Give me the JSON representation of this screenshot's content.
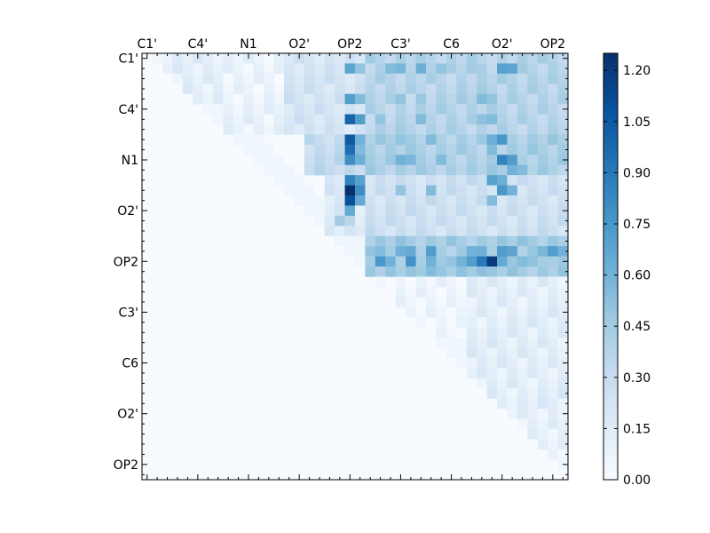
{
  "chart_data": {
    "type": "heatmap",
    "title": "",
    "xlabel": "",
    "ylabel": "",
    "matrix_size": 42,
    "x_tick_labels": [
      "C1'",
      "C4'",
      "N1",
      "O2'",
      "OP2",
      "C3'",
      "C6",
      "O2'",
      "OP2"
    ],
    "y_tick_labels": [
      "C1'",
      "C4'",
      "N1",
      "O2'",
      "OP2",
      "C3'",
      "C6",
      "O2'",
      "OP2"
    ],
    "label_positions": [
      0.5,
      5.5,
      10.5,
      15.5,
      20.5,
      25.5,
      30.5,
      35.5,
      40.5
    ],
    "colorbar": {
      "colormap": "Blues",
      "range": [
        0.0,
        1.25
      ],
      "tick_values": [
        0.0,
        0.15,
        0.3,
        0.45,
        0.6,
        0.75,
        0.9,
        1.05,
        1.2
      ],
      "tick_labels": [
        "0.00",
        "0.15",
        "0.30",
        "0.45",
        "0.60",
        "0.75",
        "0.90",
        "1.05",
        "1.20"
      ]
    },
    "colormap_stops": [
      "#f7fbff",
      "#deebf7",
      "#c6dbef",
      "#9ecae1",
      "#6baed6",
      "#4292c6",
      "#2171b5",
      "#08519c",
      "#08306b"
    ],
    "frame_color": "#000000",
    "blocks": [
      {
        "rows": [
          0,
          4
        ],
        "cols": [
          2,
          7
        ],
        "value": 0.12
      },
      {
        "rows": [
          0,
          7
        ],
        "cols": [
          8,
          13
        ],
        "value": 0.08
      },
      {
        "rows": [
          0,
          7
        ],
        "cols": [
          14,
          21
        ],
        "value": 0.22
      },
      {
        "rows": [
          0,
          7
        ],
        "cols": [
          22,
          41
        ],
        "value": 0.38
      },
      {
        "rows": [
          8,
          11
        ],
        "cols": [
          16,
          21
        ],
        "value": 0.32
      },
      {
        "rows": [
          8,
          11
        ],
        "cols": [
          22,
          41
        ],
        "value": 0.42
      },
      {
        "rows": [
          12,
          17
        ],
        "cols": [
          18,
          21
        ],
        "value": 0.18
      },
      {
        "rows": [
          12,
          17
        ],
        "cols": [
          22,
          41
        ],
        "value": 0.26
      },
      {
        "rows": [
          18,
          21
        ],
        "cols": [
          22,
          41
        ],
        "value": 0.45
      },
      {
        "rows": [
          22,
          27
        ],
        "cols": [
          24,
          31
        ],
        "value": 0.05
      },
      {
        "rows": [
          22,
          34
        ],
        "cols": [
          32,
          41
        ],
        "value": 0.13
      },
      {
        "rows": [
          35,
          39
        ],
        "cols": [
          36,
          41
        ],
        "value": 0.1
      }
    ],
    "cells": [
      [
        1,
        20,
        0.68
      ],
      [
        1,
        21,
        0.5
      ],
      [
        1,
        24,
        0.55
      ],
      [
        1,
        25,
        0.58
      ],
      [
        1,
        27,
        0.62
      ],
      [
        1,
        29,
        0.5
      ],
      [
        1,
        35,
        0.7
      ],
      [
        1,
        36,
        0.68
      ],
      [
        1,
        32,
        0.45
      ],
      [
        1,
        33,
        0.42
      ],
      [
        4,
        20,
        0.72
      ],
      [
        4,
        21,
        0.55
      ],
      [
        4,
        25,
        0.5
      ],
      [
        4,
        27,
        0.48
      ],
      [
        4,
        33,
        0.55
      ],
      [
        4,
        34,
        0.5
      ],
      [
        6,
        20,
        1.0
      ],
      [
        6,
        21,
        0.72
      ],
      [
        6,
        23,
        0.5
      ],
      [
        6,
        27,
        0.55
      ],
      [
        6,
        33,
        0.52
      ],
      [
        6,
        34,
        0.55
      ],
      [
        8,
        20,
        1.05
      ],
      [
        8,
        21,
        0.6
      ],
      [
        8,
        25,
        0.5
      ],
      [
        8,
        28,
        0.55
      ],
      [
        8,
        34,
        0.62
      ],
      [
        8,
        35,
        0.75
      ],
      [
        9,
        20,
        0.95
      ],
      [
        9,
        21,
        0.55
      ],
      [
        9,
        34,
        0.55
      ],
      [
        10,
        20,
        0.8
      ],
      [
        10,
        21,
        0.62
      ],
      [
        10,
        25,
        0.6
      ],
      [
        10,
        26,
        0.58
      ],
      [
        10,
        29,
        0.55
      ],
      [
        10,
        35,
        0.85
      ],
      [
        10,
        36,
        0.72
      ],
      [
        11,
        36,
        0.6
      ],
      [
        11,
        37,
        0.55
      ],
      [
        12,
        20,
        0.85
      ],
      [
        12,
        21,
        0.7
      ],
      [
        12,
        34,
        0.7
      ],
      [
        12,
        35,
        0.62
      ],
      [
        13,
        20,
        1.25
      ],
      [
        13,
        21,
        0.8
      ],
      [
        13,
        25,
        0.5
      ],
      [
        13,
        28,
        0.55
      ],
      [
        13,
        35,
        0.75
      ],
      [
        13,
        36,
        0.6
      ],
      [
        14,
        20,
        1.1
      ],
      [
        14,
        21,
        0.65
      ],
      [
        14,
        34,
        0.55
      ],
      [
        15,
        20,
        0.65
      ],
      [
        16,
        19,
        0.45
      ],
      [
        16,
        20,
        0.35
      ],
      [
        19,
        22,
        0.5
      ],
      [
        19,
        23,
        0.55
      ],
      [
        19,
        25,
        0.62
      ],
      [
        19,
        26,
        0.65
      ],
      [
        19,
        28,
        0.72
      ],
      [
        19,
        32,
        0.6
      ],
      [
        19,
        33,
        0.62
      ],
      [
        19,
        35,
        0.72
      ],
      [
        19,
        36,
        0.68
      ],
      [
        19,
        39,
        0.58
      ],
      [
        19,
        40,
        0.72
      ],
      [
        19,
        41,
        0.6
      ],
      [
        20,
        23,
        0.75
      ],
      [
        20,
        24,
        0.6
      ],
      [
        20,
        26,
        0.78
      ],
      [
        20,
        28,
        0.6
      ],
      [
        20,
        30,
        0.5
      ],
      [
        20,
        31,
        0.6
      ],
      [
        20,
        32,
        0.72
      ],
      [
        20,
        33,
        0.9
      ],
      [
        20,
        34,
        1.2
      ],
      [
        20,
        35,
        0.65
      ],
      [
        20,
        37,
        0.55
      ],
      [
        20,
        40,
        0.42
      ],
      [
        21,
        22,
        0.48
      ],
      [
        21,
        26,
        0.5
      ],
      [
        21,
        28,
        0.55
      ],
      [
        21,
        33,
        0.52
      ]
    ]
  }
}
